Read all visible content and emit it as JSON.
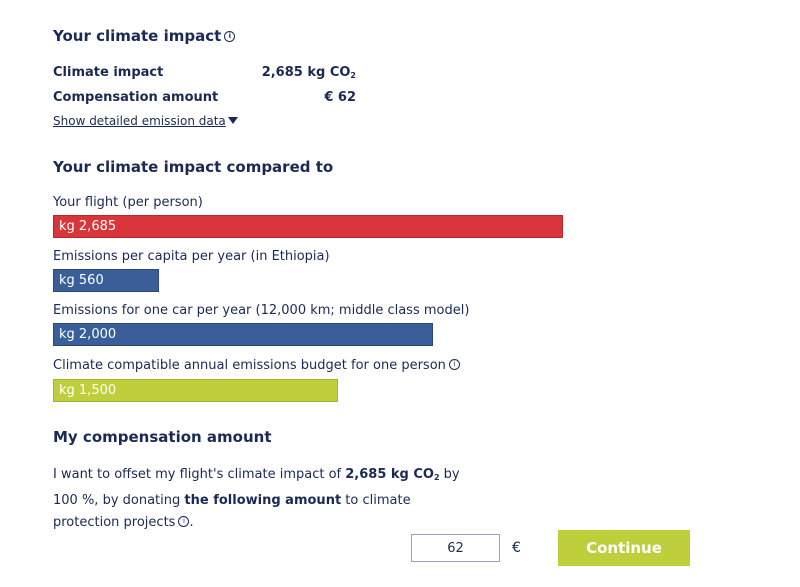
{
  "impact": {
    "title": "Your climate impact",
    "rows": [
      {
        "label": "Climate impact",
        "value": "2,685 kg CO",
        "value_sub": "2"
      },
      {
        "label": "Compensation amount",
        "value": "€ 62"
      }
    ],
    "details_link": "Show detailed emission data"
  },
  "compared": {
    "title": "Your climate impact compared to",
    "items": [
      {
        "label": "Your flight (per person)",
        "bar_text": "kg 2,685",
        "value_kg": 2685,
        "color": "#d8363a"
      },
      {
        "label": "Emissions per capita per year (in Ethiopia)",
        "bar_text": "kg 560",
        "value_kg": 560,
        "color": "#3a5f98"
      },
      {
        "label": "Emissions for one car per year (12,000 km; middle class model)",
        "bar_text": "kg 2,000",
        "value_kg": 2000,
        "color": "#3a5f98"
      },
      {
        "label": "Climate compatible annual emissions budget for one person",
        "bar_text": "kg 1,500",
        "value_kg": 1500,
        "color": "#bfcf3b"
      }
    ]
  },
  "compensation": {
    "title": "My compensation amount",
    "text_1": "I want to offset my flight's climate impact of ",
    "text_bold_1": "2,685 kg CO",
    "text_bold_sub": "2",
    "text_2": " by 100 %, by donating ",
    "text_bold_2": "the following amount",
    "text_3": " to climate protection projects",
    "text_4": ".",
    "amount_value": "62",
    "currency": "€",
    "continue_label": "Continue"
  },
  "icons": {
    "info": "info-icon",
    "dropdown": "caret-down-icon"
  }
}
